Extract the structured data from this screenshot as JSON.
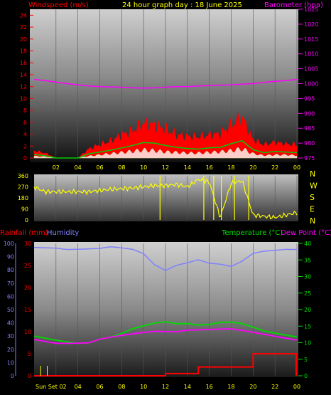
{
  "header": {
    "left": "Windspeed (m/s)",
    "center": "24 hour graph day : 18 June 2025",
    "right": "Barometer (hpa)"
  },
  "colors": {
    "wind": "#ff0000",
    "gust": "#ff0000",
    "wind_avg": "#00cc00",
    "wind_band": "#ffffff",
    "barometer": "#ff00ff",
    "direction": "#ffff00",
    "rain": "#ff0000",
    "humidity": "#8080ff",
    "temperature": "#00dd00",
    "dewpoint": "#ff00ff",
    "axis_left": "#ff0000",
    "axis_right": "#ff00ff",
    "hour_labels": "#ffff00"
  },
  "chart_data": [
    {
      "type": "line",
      "title": "24 hour graph day : 18 June 2025",
      "ylabel": "Windspeed (m/s)",
      "y2label": "Barometer (hpa)",
      "ylim": [
        0,
        25
      ],
      "y2lim": [
        975,
        1025
      ],
      "yticks": [
        0,
        2,
        4,
        6,
        8,
        10,
        12,
        14,
        16,
        18,
        20,
        22,
        24
      ],
      "y2ticks": [
        975,
        980,
        985,
        990,
        995,
        1000,
        1005,
        1010,
        1015,
        1020,
        1025
      ],
      "xticks": [
        "02",
        "04",
        "06",
        "08",
        "10",
        "12",
        "14",
        "16",
        "18",
        "20",
        "22",
        "00"
      ],
      "x": [
        0,
        1,
        2,
        3,
        4,
        5,
        6,
        7,
        8,
        9,
        10,
        11,
        12,
        13,
        14,
        15,
        16,
        17,
        18,
        19,
        20,
        21,
        22,
        23,
        24
      ],
      "series": [
        {
          "key": "gust",
          "values": [
            1.2,
            0.8,
            0,
            0,
            0,
            1.5,
            2.2,
            2.8,
            3.8,
            4.5,
            5.8,
            5.5,
            4.8,
            3.8,
            3.6,
            3.5,
            3.8,
            4.0,
            5.5,
            6.8,
            3.0,
            2.2,
            2.6,
            2.3,
            2.2
          ]
        },
        {
          "key": "wind_avg",
          "values": [
            0.6,
            0.4,
            0,
            0,
            0,
            0.7,
            1.0,
            1.3,
            1.7,
            2.1,
            2.6,
            2.5,
            2.1,
            1.8,
            1.6,
            1.5,
            1.7,
            1.8,
            2.4,
            2.9,
            1.4,
            0.9,
            1.1,
            1.0,
            0.9
          ]
        },
        {
          "key": "wind_band",
          "values": [
            0.3,
            0.2,
            0,
            0,
            0,
            0.3,
            0.5,
            0.7,
            0.9,
            1.1,
            1.3,
            1.2,
            1.0,
            0.9,
            0.8,
            0.8,
            0.9,
            1.0,
            1.2,
            1.5,
            0.7,
            0.4,
            0.5,
            0.5,
            0.4
          ]
        },
        {
          "key": "barometer",
          "values": [
            1001.4,
            1001.0,
            1000.5,
            1000.0,
            999.6,
            999.2,
            999.0,
            998.9,
            998.8,
            998.6,
            998.5,
            998.6,
            998.8,
            999.0,
            999.0,
            999.2,
            999.3,
            999.5,
            999.6,
            999.8,
            1000.0,
            1000.4,
            1000.8,
            1001.0,
            1001.4
          ]
        }
      ]
    },
    {
      "type": "line",
      "ylim": [
        0,
        360
      ],
      "yticks": [
        0,
        90,
        180,
        270,
        360
      ],
      "compass": [
        "N",
        "W",
        "S",
        "E",
        "N"
      ],
      "x": [
        0,
        1,
        2,
        3,
        4,
        5,
        6,
        7,
        8,
        9,
        10,
        11,
        12,
        13,
        14,
        15,
        16,
        17,
        18,
        19,
        20,
        21,
        22,
        23,
        24
      ],
      "series": [
        {
          "key": "direction",
          "values": [
            270,
            230,
            230,
            230,
            230,
            230,
            240,
            250,
            255,
            260,
            270,
            280,
            280,
            290,
            270,
            330,
            310,
            20,
            300,
            320,
            40,
            30,
            20,
            40,
            60
          ]
        }
      ]
    },
    {
      "type": "line",
      "ylabel": "Rainfall (mm)",
      "ylabel2": "Humidity",
      "y2label": "Temperature (°C)",
      "y2label2": "Dew Point (°C)",
      "ylim": [
        0,
        30
      ],
      "humidity_lim": [
        0,
        100
      ],
      "y2lim": [
        0,
        40
      ],
      "yticks_rain": [
        0,
        5,
        10,
        15,
        20,
        25,
        30
      ],
      "yticks_humidity": [
        0,
        10,
        20,
        30,
        40,
        50,
        60,
        70,
        80,
        90,
        100
      ],
      "y2ticks": [
        0,
        5,
        10,
        15,
        20,
        25,
        30,
        35,
        40
      ],
      "xticks": [
        "Sun Set 02",
        "04",
        "06",
        "08",
        "10",
        "12",
        "14",
        "16",
        "18",
        "20",
        "22",
        "00"
      ],
      "x": [
        0,
        1,
        2,
        3,
        4,
        5,
        6,
        7,
        8,
        9,
        10,
        11,
        12,
        13,
        14,
        15,
        16,
        17,
        18,
        19,
        20,
        21,
        22,
        23,
        24
      ],
      "series": [
        {
          "key": "humidity",
          "values": [
            97,
            97,
            97,
            96,
            96,
            96,
            96,
            97,
            96,
            95,
            92,
            84,
            80,
            84,
            86,
            88,
            85,
            84,
            82,
            86,
            92,
            94,
            95,
            96,
            96
          ]
        },
        {
          "key": "temperature",
          "values": [
            12,
            11.5,
            11,
            10.5,
            10,
            10,
            11,
            11.5,
            12.5,
            14,
            15,
            16,
            16.5,
            16,
            16,
            15.5,
            15.5,
            16,
            16,
            15.5,
            14.5,
            13.5,
            13,
            12.5,
            12
          ]
        },
        {
          "key": "dewpoint",
          "values": [
            11,
            10.5,
            10,
            10,
            10,
            10,
            11,
            11.5,
            12,
            12.5,
            13,
            13.5,
            13.5,
            13.5,
            14,
            14,
            14,
            14,
            14,
            13.5,
            13,
            12.5,
            12,
            11.5,
            11
          ]
        },
        {
          "key": "rain",
          "values": [
            0,
            0,
            0,
            0,
            0,
            0,
            0,
            0,
            0,
            0,
            0,
            0,
            0.5,
            0.5,
            0.5,
            2,
            2,
            2,
            2,
            2,
            5,
            5,
            5,
            5,
            5
          ]
        }
      ]
    }
  ]
}
